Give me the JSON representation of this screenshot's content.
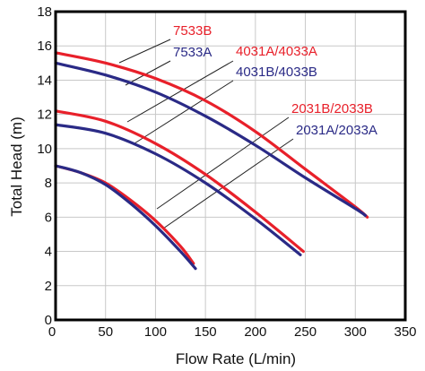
{
  "chart_data": {
    "type": "line",
    "title": "",
    "xlabel": "Flow Rate (L/min)",
    "ylabel": "Total Head (m)",
    "xlim": [
      0,
      350
    ],
    "ylim": [
      0,
      18
    ],
    "xticks": [
      0,
      50,
      100,
      150,
      200,
      250,
      300,
      350
    ],
    "yticks": [
      0,
      2,
      4,
      6,
      8,
      10,
      12,
      14,
      16,
      18
    ],
    "grid": true,
    "colors": {
      "red": "#e8202a",
      "blue": "#2a2a86",
      "grid": "#c8c8c8",
      "frame": "#000000"
    },
    "series": [
      {
        "name": "7533B",
        "color": "#e8202a",
        "x": [
          0,
          50,
          100,
          150,
          200,
          250,
          300,
          312
        ],
        "y": [
          15.6,
          15.0,
          14.1,
          12.8,
          11.0,
          8.8,
          6.6,
          6.0
        ]
      },
      {
        "name": "7533A",
        "color": "#2a2a86",
        "x": [
          0,
          50,
          100,
          150,
          200,
          250,
          300,
          310
        ],
        "y": [
          15.0,
          14.3,
          13.3,
          11.9,
          10.2,
          8.3,
          6.5,
          6.1
        ]
      },
      {
        "name": "4031A/4033A",
        "color": "#e8202a",
        "x": [
          0,
          50,
          100,
          150,
          200,
          248
        ],
        "y": [
          12.2,
          11.6,
          10.3,
          8.5,
          6.3,
          4.0
        ]
      },
      {
        "name": "4031B/4033B",
        "color": "#2a2a86",
        "x": [
          0,
          50,
          100,
          150,
          200,
          245
        ],
        "y": [
          11.4,
          10.9,
          9.7,
          8.0,
          5.9,
          3.8
        ]
      },
      {
        "name": "2031B/2033B",
        "color": "#e8202a",
        "x": [
          0,
          25,
          50,
          75,
          100,
          125,
          138
        ],
        "y": [
          9.0,
          8.6,
          8.0,
          7.0,
          5.8,
          4.3,
          3.3
        ]
      },
      {
        "name": "2031A/2033A",
        "color": "#2a2a86",
        "x": [
          0,
          25,
          50,
          75,
          100,
          125,
          140
        ],
        "y": [
          9.0,
          8.6,
          7.9,
          6.8,
          5.5,
          4.0,
          3.0
        ]
      }
    ]
  }
}
